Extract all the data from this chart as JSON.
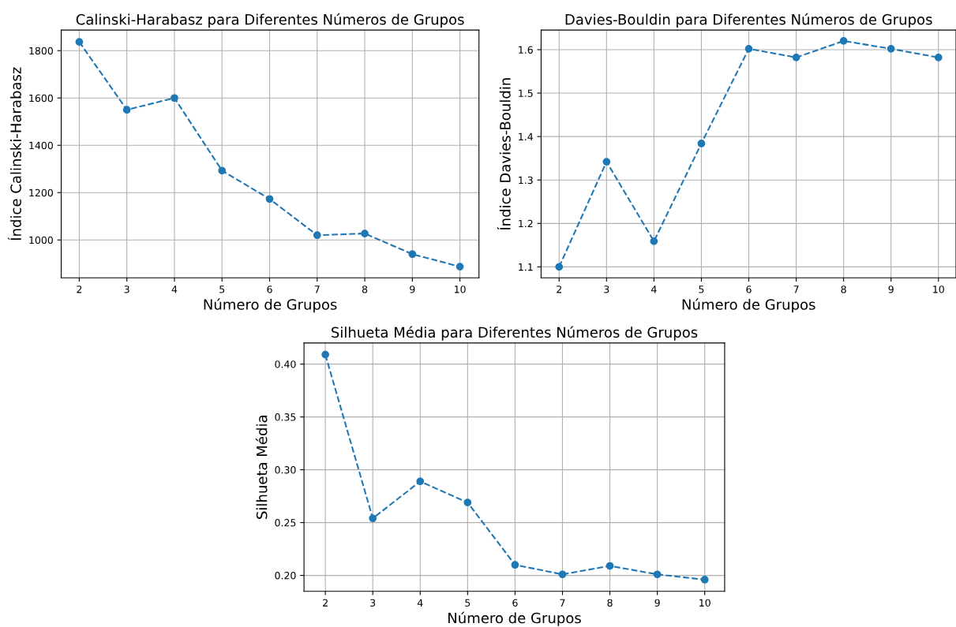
{
  "chart_data": [
    {
      "type": "line",
      "title": "Calinski-Harabasz para Diferentes Números de Grupos",
      "xlabel": "Número de Grupos",
      "ylabel": "Índice Calinski-Harabasz",
      "x": [
        2,
        3,
        4,
        5,
        6,
        7,
        8,
        9,
        10
      ],
      "series": [
        {
          "color": "#1f77b4",
          "values": [
            1837,
            1550,
            1600,
            1293,
            1173,
            1020,
            1027,
            940,
            887
          ]
        }
      ],
      "xlim": [
        1.62,
        10.4
      ],
      "ylim": [
        840,
        1887
      ],
      "xticks": [
        2,
        3,
        4,
        5,
        6,
        7,
        8,
        9,
        10
      ],
      "yticks": [
        1000,
        1200,
        1400,
        1600,
        1800
      ],
      "grid": true,
      "marker": "circle",
      "line_style": "dashed"
    },
    {
      "type": "line",
      "title": "Davies-Bouldin para Diferentes Números de Grupos",
      "xlabel": "Número de Grupos",
      "ylabel": "Índice Davies-Bouldin",
      "x": [
        2,
        3,
        4,
        5,
        6,
        7,
        8,
        9,
        10
      ],
      "series": [
        {
          "color": "#1f77b4",
          "values": [
            1.1,
            1.342,
            1.159,
            1.384,
            1.602,
            1.582,
            1.62,
            1.602,
            1.582
          ]
        }
      ],
      "xlim": [
        1.62,
        10.37
      ],
      "ylim": [
        1.075,
        1.645
      ],
      "xticks": [
        2,
        3,
        4,
        5,
        6,
        7,
        8,
        9,
        10
      ],
      "yticks": [
        {
          "value": 1.1,
          "label": "1.1"
        },
        {
          "value": 1.2,
          "label": "1.2"
        },
        {
          "value": 1.3,
          "label": "1.3"
        },
        {
          "value": 1.4,
          "label": "1.4"
        },
        {
          "value": 1.5,
          "label": "1.5"
        },
        {
          "value": 1.6,
          "label": "1.6"
        }
      ],
      "grid": true,
      "marker": "circle",
      "line_style": "dashed"
    },
    {
      "type": "line",
      "title": "Silhueta Média para Diferentes Números de Grupos",
      "xlabel": "Número de Grupos",
      "ylabel": "Silhueta Média",
      "x": [
        2,
        3,
        4,
        5,
        6,
        7,
        8,
        9,
        10
      ],
      "series": [
        {
          "color": "#1f77b4",
          "values": [
            0.409,
            0.254,
            0.289,
            0.269,
            0.21,
            0.201,
            0.209,
            0.201,
            0.196
          ]
        }
      ],
      "xlim": [
        1.55,
        10.42
      ],
      "ylim": [
        0.185,
        0.42
      ],
      "xticks": [
        2,
        3,
        4,
        5,
        6,
        7,
        8,
        9,
        10
      ],
      "yticks": [
        {
          "value": 0.2,
          "label": "0.20"
        },
        {
          "value": 0.25,
          "label": "0.25"
        },
        {
          "value": 0.3,
          "label": "0.30"
        },
        {
          "value": 0.35,
          "label": "0.35"
        },
        {
          "value": 0.4,
          "label": "0.40"
        }
      ],
      "grid": true,
      "marker": "circle",
      "line_style": "dashed"
    }
  ]
}
